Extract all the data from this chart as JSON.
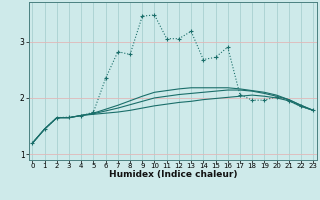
{
  "xlabel": "Humidex (Indice chaleur)",
  "bg_color": "#ceeaea",
  "line_color": "#1a6e6a",
  "grid_color_v": "#a8d0d0",
  "grid_color_h": "#e0b8b8",
  "x": [
    0,
    1,
    2,
    3,
    4,
    5,
    6,
    7,
    8,
    9,
    10,
    11,
    12,
    13,
    14,
    15,
    16,
    17,
    18,
    19,
    20,
    21,
    22,
    23
  ],
  "main_y": [
    1.2,
    1.45,
    1.65,
    1.66,
    1.68,
    1.75,
    2.35,
    2.82,
    2.77,
    3.45,
    3.47,
    3.05,
    3.05,
    3.18,
    2.68,
    2.72,
    2.9,
    2.06,
    1.96,
    1.96,
    2.02,
    1.95,
    1.85,
    1.78
  ],
  "flat1_y": [
    1.2,
    1.45,
    1.65,
    1.65,
    1.69,
    1.71,
    1.73,
    1.75,
    1.78,
    1.82,
    1.86,
    1.89,
    1.92,
    1.94,
    1.97,
    1.99,
    2.01,
    2.03,
    2.05,
    2.03,
    2.0,
    1.95,
    1.85,
    1.78
  ],
  "flat2_y": [
    1.2,
    1.45,
    1.65,
    1.65,
    1.69,
    1.72,
    1.77,
    1.82,
    1.88,
    1.94,
    2.0,
    2.03,
    2.06,
    2.08,
    2.1,
    2.12,
    2.14,
    2.14,
    2.12,
    2.08,
    2.03,
    1.97,
    1.87,
    1.78
  ],
  "flat3_y": [
    1.2,
    1.45,
    1.65,
    1.65,
    1.69,
    1.73,
    1.8,
    1.87,
    1.95,
    2.03,
    2.1,
    2.13,
    2.16,
    2.18,
    2.18,
    2.18,
    2.18,
    2.16,
    2.13,
    2.1,
    2.05,
    1.97,
    1.87,
    1.78
  ],
  "xlim": [
    -0.3,
    23.3
  ],
  "ylim": [
    0.9,
    3.7
  ],
  "yticks": [
    1,
    2,
    3
  ],
  "xticks": [
    0,
    1,
    2,
    3,
    4,
    5,
    6,
    7,
    8,
    9,
    10,
    11,
    12,
    13,
    14,
    15,
    16,
    17,
    18,
    19,
    20,
    21,
    22,
    23
  ]
}
